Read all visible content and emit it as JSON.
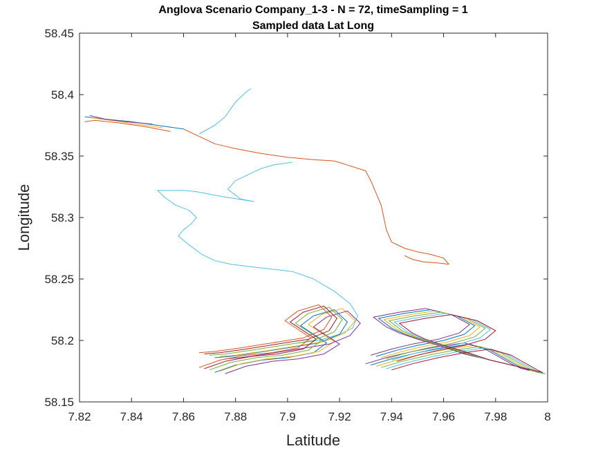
{
  "chart_data": {
    "type": "line",
    "title": "Anglova Scenario Company_1-3 - N = 72, timeSampling = 1",
    "subtitle": "Sampled data Lat Long",
    "xlabel": "Latitude",
    "ylabel": "Longitude",
    "xlim": [
      7.82,
      8.0
    ],
    "ylim": [
      58.15,
      58.45
    ],
    "xticks": [
      7.82,
      7.84,
      7.86,
      7.88,
      7.9,
      7.92,
      7.94,
      7.96,
      7.98,
      8.0
    ],
    "xtick_labels": [
      "7.82",
      "7.84",
      "7.86",
      "7.88",
      "7.9",
      "7.92",
      "7.94",
      "7.96",
      "7.98",
      "8"
    ],
    "yticks": [
      58.15,
      58.2,
      58.25,
      58.3,
      58.35,
      58.4,
      58.45
    ],
    "ytick_labels": [
      "58.15",
      "58.2",
      "58.25",
      "58.3",
      "58.35",
      "58.4",
      "58.45"
    ],
    "grid": false,
    "legend": "none",
    "colors": [
      "#0072BD",
      "#D95319",
      "#EDB120",
      "#7E2F8E",
      "#77AC30",
      "#4DBEEE",
      "#A2142F"
    ],
    "series": [
      {
        "color": "#D95319",
        "x": [
          7.86,
          7.867,
          7.872,
          7.88,
          7.89,
          7.9,
          7.91,
          7.918,
          7.924,
          7.93,
          7.932,
          7.934,
          7.936,
          7.937,
          7.938,
          7.94,
          7.945,
          7.95,
          7.955,
          7.96,
          7.962,
          7.958,
          7.952,
          7.948,
          7.945
        ],
        "y": [
          58.372,
          58.365,
          58.36,
          58.356,
          58.352,
          58.349,
          58.347,
          58.346,
          58.342,
          58.338,
          58.33,
          58.32,
          58.31,
          58.3,
          58.29,
          58.28,
          58.275,
          58.272,
          58.27,
          58.267,
          58.262,
          58.263,
          58.264,
          58.266,
          58.269
        ]
      },
      {
        "color": "#4DBEEE",
        "x": [
          7.866,
          7.872,
          7.876,
          7.878,
          7.88,
          7.882,
          7.884,
          7.886
        ],
        "y": [
          58.368,
          58.375,
          58.382,
          58.388,
          58.394,
          58.398,
          58.402,
          58.405
        ]
      },
      {
        "color": "#4DBEEE",
        "x": [
          7.902,
          7.895,
          7.89,
          7.885,
          7.88,
          7.877,
          7.882,
          7.887,
          7.875,
          7.865,
          7.86,
          7.855,
          7.85,
          7.853,
          7.857,
          7.862,
          7.865,
          7.863,
          7.86,
          7.858,
          7.862,
          7.867,
          7.872,
          7.878,
          7.886,
          7.894,
          7.902,
          7.91,
          7.918,
          7.924,
          7.927,
          7.925,
          7.92,
          7.912,
          7.904
        ],
        "y": [
          58.345,
          58.343,
          58.34,
          58.335,
          58.33,
          58.323,
          58.315,
          58.313,
          58.317,
          58.321,
          58.322,
          58.322,
          58.322,
          58.316,
          58.31,
          58.306,
          58.3,
          58.295,
          58.29,
          58.285,
          58.278,
          58.27,
          58.265,
          58.262,
          58.26,
          58.258,
          58.256,
          58.25,
          58.24,
          58.23,
          58.22,
          58.21,
          58.205,
          58.2,
          58.198
        ]
      },
      {
        "color": "#0072BD",
        "x": [
          7.872,
          7.88,
          7.89,
          7.9,
          7.91,
          7.915,
          7.91,
          7.905,
          7.91,
          7.918,
          7.923,
          7.92,
          7.912,
          7.9,
          7.888,
          7.878,
          7.872
        ],
        "y": [
          58.174,
          58.18,
          58.184,
          58.186,
          58.19,
          58.198,
          58.205,
          58.212,
          58.22,
          58.225,
          58.215,
          58.205,
          58.198,
          58.194,
          58.19,
          58.187,
          58.186
        ]
      },
      {
        "color": "#EDB120",
        "x": [
          7.874,
          7.882,
          7.892,
          7.902,
          7.912,
          7.918,
          7.913,
          7.908,
          7.913,
          7.921,
          7.926,
          7.922,
          7.914,
          7.902,
          7.89,
          7.88,
          7.874
        ],
        "y": [
          58.175,
          58.181,
          58.185,
          58.187,
          58.191,
          58.199,
          58.206,
          58.213,
          58.221,
          58.226,
          58.216,
          58.206,
          58.199,
          58.195,
          58.191,
          58.188,
          58.187
        ]
      },
      {
        "color": "#7E2F8E",
        "x": [
          7.876,
          7.884,
          7.894,
          7.904,
          7.914,
          7.92,
          7.915,
          7.91,
          7.915,
          7.923,
          7.928,
          7.924,
          7.916,
          7.904,
          7.892,
          7.882,
          7.876
        ],
        "y": [
          58.173,
          58.179,
          58.183,
          58.185,
          58.189,
          58.197,
          58.204,
          58.211,
          58.219,
          58.224,
          58.214,
          58.204,
          58.197,
          58.193,
          58.189,
          58.186,
          58.185
        ]
      },
      {
        "color": "#77AC30",
        "x": [
          7.87,
          7.878,
          7.888,
          7.898,
          7.908,
          7.913,
          7.908,
          7.903,
          7.908,
          7.916,
          7.921,
          7.918,
          7.91,
          7.898,
          7.886,
          7.876,
          7.87
        ],
        "y": [
          58.176,
          58.182,
          58.186,
          58.188,
          58.192,
          58.2,
          58.207,
          58.214,
          58.222,
          58.227,
          58.217,
          58.207,
          58.2,
          58.196,
          58.192,
          58.189,
          58.188
        ]
      },
      {
        "color": "#A2142F",
        "x": [
          7.868,
          7.876,
          7.886,
          7.896,
          7.906,
          7.911,
          7.906,
          7.901,
          7.906,
          7.914,
          7.919,
          7.916,
          7.908,
          7.896,
          7.884,
          7.874,
          7.868
        ],
        "y": [
          58.177,
          58.183,
          58.187,
          58.189,
          58.193,
          58.201,
          58.208,
          58.215,
          58.223,
          58.228,
          58.218,
          58.208,
          58.201,
          58.197,
          58.193,
          58.19,
          58.189
        ]
      },
      {
        "color": "#D95319",
        "x": [
          7.866,
          7.874,
          7.884,
          7.894,
          7.904,
          7.909,
          7.904,
          7.899,
          7.904,
          7.912,
          7.917,
          7.914,
          7.906,
          7.894,
          7.882,
          7.872,
          7.866
        ],
        "y": [
          58.178,
          58.184,
          58.188,
          58.19,
          58.194,
          58.202,
          58.209,
          58.216,
          58.224,
          58.229,
          58.219,
          58.209,
          58.202,
          58.198,
          58.194,
          58.191,
          58.19
        ]
      },
      {
        "color": "#0072BD",
        "x": [
          7.932,
          7.94,
          7.95,
          7.96,
          7.97,
          7.978,
          7.983,
          7.988,
          7.992,
          7.995,
          7.99,
          7.98,
          7.97,
          7.96,
          7.952,
          7.945,
          7.94,
          7.935,
          7.945,
          7.955,
          7.965,
          7.972,
          7.968,
          7.96,
          7.95,
          7.942,
          7.934
        ],
        "y": [
          58.18,
          58.185,
          58.19,
          58.194,
          58.197,
          58.192,
          58.186,
          58.18,
          58.176,
          58.175,
          58.178,
          58.183,
          58.188,
          58.195,
          58.2,
          58.205,
          58.21,
          58.218,
          58.222,
          58.225,
          58.22,
          58.212,
          58.205,
          58.2,
          58.196,
          58.192,
          58.187
        ]
      },
      {
        "color": "#EDB120",
        "x": [
          7.934,
          7.942,
          7.952,
          7.962,
          7.972,
          7.98,
          7.985,
          7.99,
          7.994,
          7.997,
          7.992,
          7.982,
          7.972,
          7.962,
          7.954,
          7.947,
          7.942,
          7.937,
          7.947,
          7.957,
          7.967,
          7.974,
          7.97,
          7.962,
          7.952,
          7.944,
          7.936
        ],
        "y": [
          58.179,
          58.184,
          58.189,
          58.193,
          58.196,
          58.191,
          58.185,
          58.179,
          58.175,
          58.174,
          58.177,
          58.182,
          58.187,
          58.194,
          58.199,
          58.204,
          58.209,
          58.217,
          58.221,
          58.224,
          58.219,
          58.211,
          58.204,
          58.199,
          58.195,
          58.191,
          58.186
        ]
      },
      {
        "color": "#7E2F8E",
        "x": [
          7.93,
          7.938,
          7.948,
          7.958,
          7.968,
          7.976,
          7.981,
          7.986,
          7.99,
          7.993,
          7.988,
          7.978,
          7.968,
          7.958,
          7.95,
          7.943,
          7.938,
          7.933,
          7.943,
          7.953,
          7.963,
          7.97,
          7.966,
          7.958,
          7.948,
          7.94,
          7.932
        ],
        "y": [
          58.181,
          58.186,
          58.191,
          58.195,
          58.198,
          58.193,
          58.187,
          58.181,
          58.177,
          58.176,
          58.179,
          58.184,
          58.189,
          58.196,
          58.201,
          58.206,
          58.211,
          58.219,
          58.223,
          58.226,
          58.221,
          58.213,
          58.206,
          58.201,
          58.197,
          58.193,
          58.188
        ]
      },
      {
        "color": "#77AC30",
        "x": [
          7.936,
          7.944,
          7.954,
          7.964,
          7.974,
          7.982,
          7.987,
          7.992,
          7.996,
          7.999,
          7.994,
          7.984,
          7.974,
          7.964,
          7.956,
          7.949,
          7.944,
          7.939,
          7.949,
          7.959,
          7.969,
          7.976,
          7.972,
          7.964,
          7.954,
          7.946,
          7.938
        ],
        "y": [
          58.178,
          58.183,
          58.188,
          58.192,
          58.195,
          58.19,
          58.184,
          58.178,
          58.174,
          58.173,
          58.176,
          58.181,
          58.186,
          58.193,
          58.198,
          58.203,
          58.208,
          58.216,
          58.22,
          58.223,
          58.218,
          58.21,
          58.203,
          58.198,
          58.194,
          58.19,
          58.185
        ]
      },
      {
        "color": "#4DBEEE",
        "x": [
          7.938,
          7.946,
          7.956,
          7.966,
          7.976,
          7.984,
          7.989,
          7.994,
          7.998,
          7.996,
          7.986,
          7.976,
          7.966,
          7.958,
          7.951,
          7.946,
          7.941,
          7.951,
          7.961,
          7.971,
          7.978,
          7.974,
          7.966,
          7.956,
          7.948,
          7.94
        ],
        "y": [
          58.177,
          58.182,
          58.187,
          58.191,
          58.194,
          58.189,
          58.183,
          58.177,
          58.173,
          58.175,
          58.18,
          58.185,
          58.192,
          58.197,
          58.202,
          58.207,
          58.215,
          58.219,
          58.222,
          58.217,
          58.209,
          58.202,
          58.197,
          58.193,
          58.189,
          58.184
        ]
      },
      {
        "color": "#A2142F",
        "x": [
          7.94,
          7.948,
          7.958,
          7.968,
          7.978,
          7.986,
          7.991,
          7.996,
          7.998,
          7.988,
          7.978,
          7.968,
          7.96,
          7.953,
          7.948,
          7.943,
          7.953,
          7.963,
          7.973,
          7.98,
          7.976,
          7.968,
          7.958,
          7.95,
          7.942
        ],
        "y": [
          58.176,
          58.181,
          58.186,
          58.19,
          58.193,
          58.188,
          58.182,
          58.176,
          58.174,
          58.179,
          58.184,
          58.191,
          58.196,
          58.201,
          58.206,
          58.214,
          58.218,
          58.221,
          58.216,
          58.208,
          58.201,
          58.196,
          58.192,
          58.188,
          58.183
        ]
      },
      {
        "color": "#0072BD",
        "x": [
          7.86,
          7.85,
          7.84,
          7.83,
          7.822
        ],
        "y": [
          58.372,
          58.375,
          58.378,
          58.38,
          58.382
        ]
      },
      {
        "color": "#D95319",
        "x": [
          7.855,
          7.845,
          7.835,
          7.826,
          7.822
        ],
        "y": [
          58.37,
          58.374,
          58.377,
          58.379,
          58.378
        ]
      },
      {
        "color": "#EDB120",
        "x": [
          7.852,
          7.842,
          7.832,
          7.825
        ],
        "y": [
          58.373,
          58.376,
          58.379,
          58.381
        ]
      },
      {
        "color": "#7E2F8E",
        "x": [
          7.848,
          7.838,
          7.83,
          7.824
        ],
        "y": [
          58.376,
          58.378,
          58.38,
          58.383
        ]
      }
    ]
  }
}
